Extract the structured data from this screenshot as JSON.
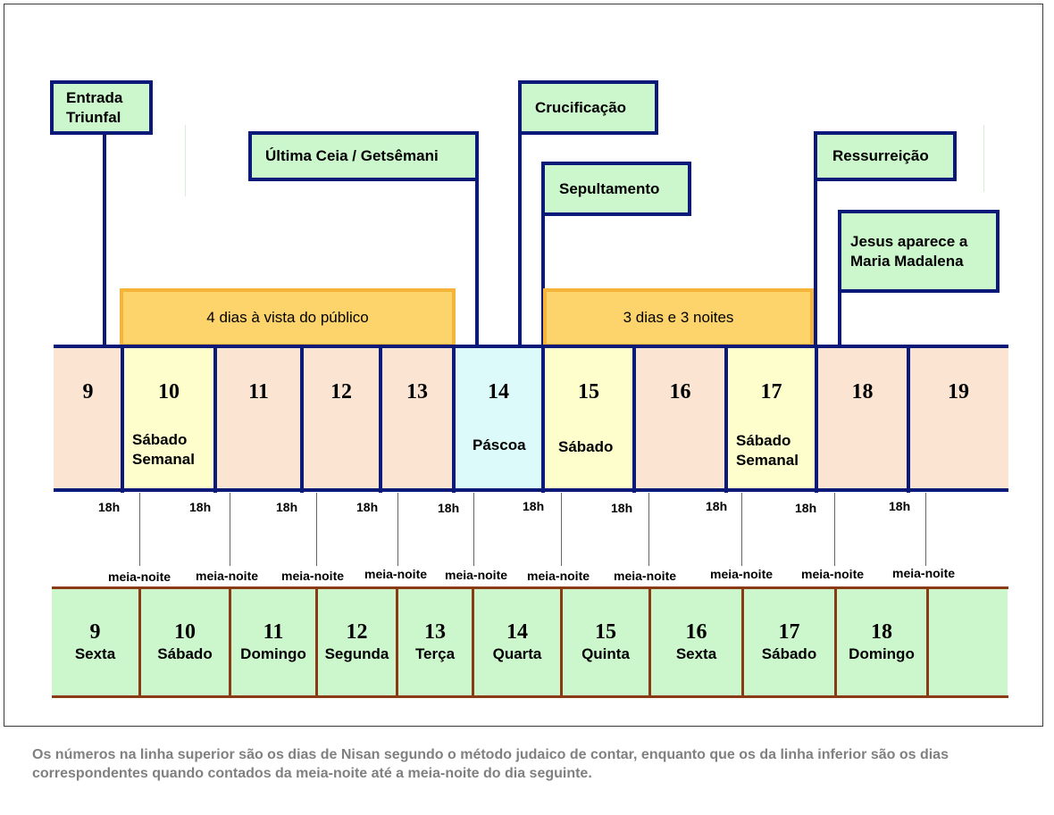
{
  "events": {
    "entrada": [
      "Entrada",
      "Triunfal"
    ],
    "ultima_ceia": "Última Ceia / Getsêmani",
    "crucificacao": "Crucificação",
    "sepultamento": "Sepultamento",
    "ressurreicao": "Ressurreição",
    "aparece": [
      "Jesus aparece a",
      "Maria Madalena"
    ]
  },
  "periods": {
    "publico": "4 dias à vista do público",
    "tres_dias": "3 dias e 3 noites"
  },
  "top_row": {
    "days": [
      "9",
      "10",
      "11",
      "12",
      "13",
      "14",
      "15",
      "16",
      "17",
      "18",
      "19"
    ],
    "labels": {
      "d10": [
        "Sábado",
        "Semanal"
      ],
      "d14": "Páscoa",
      "d15": "Sábado",
      "d17": [
        "Sábado",
        "Semanal"
      ]
    },
    "colors": {
      "normal": "#fce4d2",
      "sabbath": "#fefecc",
      "pascoa": "#dcfafa"
    }
  },
  "markers": {
    "sunset": "18h",
    "midnight": "meia-noite"
  },
  "bottom_row": {
    "days": [
      {
        "num": "9",
        "name": "Sexta"
      },
      {
        "num": "10",
        "name": "Sábado"
      },
      {
        "num": "11",
        "name": "Domingo"
      },
      {
        "num": "12",
        "name": "Segunda"
      },
      {
        "num": "13",
        "name": "Terça"
      },
      {
        "num": "14",
        "name": "Quarta"
      },
      {
        "num": "15",
        "name": "Quinta"
      },
      {
        "num": "16",
        "name": "Sexta"
      },
      {
        "num": "17",
        "name": "Sábado"
      },
      {
        "num": "18",
        "name": "Domingo"
      }
    ]
  },
  "caption": "Os números na linha superior são os dias de Nisan segundo o método judaico de contar, enquanto que os da linha inferior são os dias correspondentes quando contados da meia-noite até a meia-noite do dia seguinte."
}
